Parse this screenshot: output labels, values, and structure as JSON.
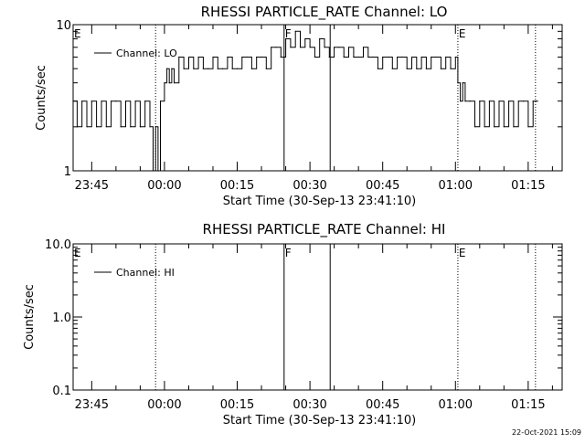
{
  "timestamp": "22-Oct-2021 15:09",
  "chart_data": [
    {
      "type": "line",
      "title": "RHESSI PARTICLE_RATE Channel: LO",
      "xlabel": "Start Time (30-Sep-13 23:41:10)",
      "ylabel": "Counts/sec",
      "yscale": "log",
      "ylim": [
        1,
        10
      ],
      "ytick_labels": [
        "1",
        "10"
      ],
      "xlim": [
        "23:41:10",
        "01:22:00"
      ],
      "xtick_labels": [
        "23:45",
        "00:00",
        "00:15",
        "00:30",
        "00:45",
        "01:00",
        "01:15"
      ],
      "legend": {
        "label": "Channel: LO",
        "placement": "top-left"
      },
      "grid": false,
      "annotations": [
        {
          "text": "E",
          "x": "23:41:10"
        },
        {
          "text": "F",
          "x": "00:24:40"
        },
        {
          "text": "E",
          "x": "01:00:30"
        }
      ],
      "vlines": [
        {
          "x": "23:58:10",
          "style": "dotted"
        },
        {
          "x": "00:24:40",
          "style": "solid"
        },
        {
          "x": "00:34:10",
          "style": "solid"
        },
        {
          "x": "01:00:30",
          "style": "dotted"
        },
        {
          "x": "01:16:30",
          "style": "dotted"
        }
      ],
      "series": [
        {
          "name": "Channel: LO",
          "x": [
            "23:41:10",
            "23:42:00",
            "23:43:00",
            "23:44:00",
            "23:45:00",
            "23:46:00",
            "23:47:00",
            "23:48:00",
            "23:49:00",
            "23:50:00",
            "23:51:00",
            "23:52:00",
            "23:53:00",
            "23:54:00",
            "23:55:00",
            "23:56:00",
            "23:57:00",
            "23:57:40",
            "23:58:10",
            "23:58:40",
            "23:59:10",
            "00:00:00",
            "00:00:30",
            "00:01:00",
            "00:01:30",
            "00:02:00",
            "00:03:00",
            "00:04:00",
            "00:05:00",
            "00:06:00",
            "00:07:00",
            "00:08:00",
            "00:09:00",
            "00:10:00",
            "00:11:00",
            "00:12:00",
            "00:13:00",
            "00:14:00",
            "00:15:00",
            "00:16:00",
            "00:17:00",
            "00:18:00",
            "00:19:00",
            "00:20:00",
            "00:21:00",
            "00:22:00",
            "00:23:00",
            "00:24:00",
            "00:25:00",
            "00:26:00",
            "00:27:00",
            "00:28:00",
            "00:29:00",
            "00:30:00",
            "00:31:00",
            "00:32:00",
            "00:33:00",
            "00:34:00",
            "00:35:00",
            "00:36:00",
            "00:37:00",
            "00:38:00",
            "00:39:00",
            "00:40:00",
            "00:41:00",
            "00:42:00",
            "00:43:00",
            "00:44:00",
            "00:45:00",
            "00:46:00",
            "00:47:00",
            "00:48:00",
            "00:49:00",
            "00:50:00",
            "00:51:00",
            "00:52:00",
            "00:53:00",
            "00:54:00",
            "00:55:00",
            "00:56:00",
            "00:57:00",
            "00:58:00",
            "00:59:00",
            "01:00:00",
            "01:00:30",
            "01:01:00",
            "01:01:30",
            "01:02:00",
            "01:03:00",
            "01:04:00",
            "01:05:00",
            "01:06:00",
            "01:07:00",
            "01:08:00",
            "01:09:00",
            "01:10:00",
            "01:11:00",
            "01:12:00",
            "01:13:00",
            "01:14:00",
            "01:15:00",
            "01:16:00",
            "01:16:40"
          ],
          "values": [
            3,
            2,
            3,
            2,
            3,
            2,
            3,
            2,
            3,
            3,
            2,
            3,
            2,
            3,
            2,
            3,
            2,
            1,
            2,
            1,
            3,
            4,
            5,
            4,
            5,
            4,
            6,
            5,
            6,
            5,
            6,
            5,
            5,
            6,
            5,
            5,
            6,
            5,
            5,
            6,
            6,
            5,
            6,
            6,
            5,
            7,
            7,
            6,
            8,
            7,
            9,
            7,
            8,
            7,
            6,
            8,
            7,
            6,
            7,
            7,
            6,
            7,
            6,
            6,
            7,
            6,
            6,
            5,
            6,
            6,
            5,
            6,
            6,
            5,
            6,
            5,
            6,
            5,
            6,
            6,
            5,
            6,
            5,
            6,
            4,
            3,
            4,
            3,
            3,
            2,
            3,
            2,
            3,
            2,
            3,
            2,
            3,
            2,
            3,
            3,
            2,
            3,
            3
          ]
        }
      ]
    },
    {
      "type": "line",
      "title": "RHESSI PARTICLE_RATE Channel: HI",
      "xlabel": "Start Time (30-Sep-13 23:41:10)",
      "ylabel": "Counts/sec",
      "yscale": "log",
      "ylim": [
        0.1,
        10
      ],
      "ytick_labels": [
        "0.1",
        "1.0",
        "10.0"
      ],
      "xlim": [
        "23:41:10",
        "01:22:00"
      ],
      "xtick_labels": [
        "23:45",
        "00:00",
        "00:15",
        "00:30",
        "00:45",
        "01:00",
        "01:15"
      ],
      "legend": {
        "label": "Channel: HI",
        "placement": "top-left"
      },
      "grid": false,
      "annotations": [
        {
          "text": "E",
          "x": "23:41:10"
        },
        {
          "text": "F",
          "x": "00:24:40"
        },
        {
          "text": "E",
          "x": "01:00:30"
        }
      ],
      "vlines": [
        {
          "x": "23:58:10",
          "style": "dotted"
        },
        {
          "x": "00:24:40",
          "style": "solid"
        },
        {
          "x": "00:34:10",
          "style": "solid"
        },
        {
          "x": "01:00:30",
          "style": "dotted"
        },
        {
          "x": "01:16:30",
          "style": "dotted"
        }
      ],
      "series": [
        {
          "name": "Channel: HI",
          "x": [],
          "values": []
        }
      ]
    }
  ]
}
